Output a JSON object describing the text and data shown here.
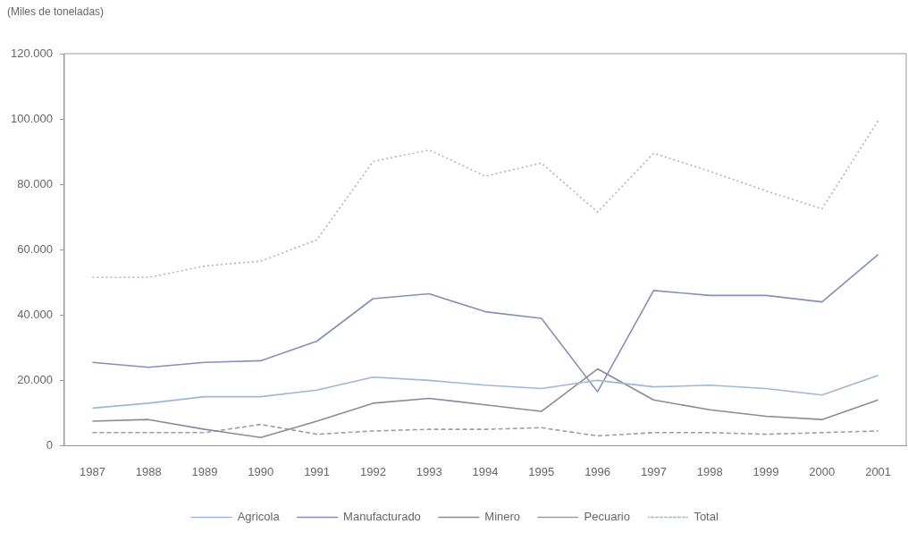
{
  "chart_data": {
    "type": "line",
    "ylabel": "(Miles de toneladas)",
    "categories": [
      "1987",
      "1988",
      "1989",
      "1990",
      "1991",
      "1992",
      "1993",
      "1994",
      "1995",
      "1996",
      "1997",
      "1998",
      "1999",
      "2000",
      "2001"
    ],
    "series": [
      {
        "name": "Agricola",
        "color": "#9fb6d6",
        "line_style": "solid",
        "values": [
          11500,
          13000,
          15000,
          15000,
          17000,
          21000,
          20000,
          18500,
          17500,
          20000,
          18000,
          18500,
          17500,
          15500,
          21500
        ]
      },
      {
        "name": "Manufacturado",
        "color": "#8391b8",
        "line_style": "solid",
        "values": [
          25500,
          24000,
          25500,
          26000,
          32000,
          45000,
          46500,
          41000,
          39000,
          16500,
          47500,
          46000,
          46000,
          44000,
          58500
        ]
      },
      {
        "name": "Minero",
        "color": "#8c8a94",
        "line_style": "solid",
        "values": [
          7500,
          8000,
          5000,
          2500,
          7500,
          13000,
          14500,
          12500,
          10500,
          23500,
          14000,
          11000,
          9000,
          8000,
          14000
        ]
      },
      {
        "name": "Pecuario",
        "color": "#a49c9c",
        "line_style": "dashed",
        "values": [
          4000,
          4000,
          4000,
          6500,
          3500,
          4500,
          5000,
          5000,
          5500,
          3000,
          4000,
          4000,
          3500,
          4000,
          4500
        ]
      },
      {
        "name": "Total",
        "color": "#a9b5c6",
        "line_style": "dotted",
        "values": [
          51500,
          51500,
          55000,
          56500,
          63000,
          87000,
          90500,
          82500,
          86500,
          71500,
          89500,
          84000,
          78000,
          72500,
          99500
        ]
      }
    ],
    "ylim": [
      0,
      120000
    ],
    "yticks": [
      {
        "value": 0,
        "label": "0"
      },
      {
        "value": 20000,
        "label": "20.000"
      },
      {
        "value": 40000,
        "label": "40.000"
      },
      {
        "value": 60000,
        "label": "60.000"
      },
      {
        "value": 80000,
        "label": "80.000"
      },
      {
        "value": 100000,
        "label": "100.000"
      },
      {
        "value": 120000,
        "label": "120.000"
      }
    ],
    "grid": false,
    "legend": "bottom",
    "marker": "none"
  }
}
